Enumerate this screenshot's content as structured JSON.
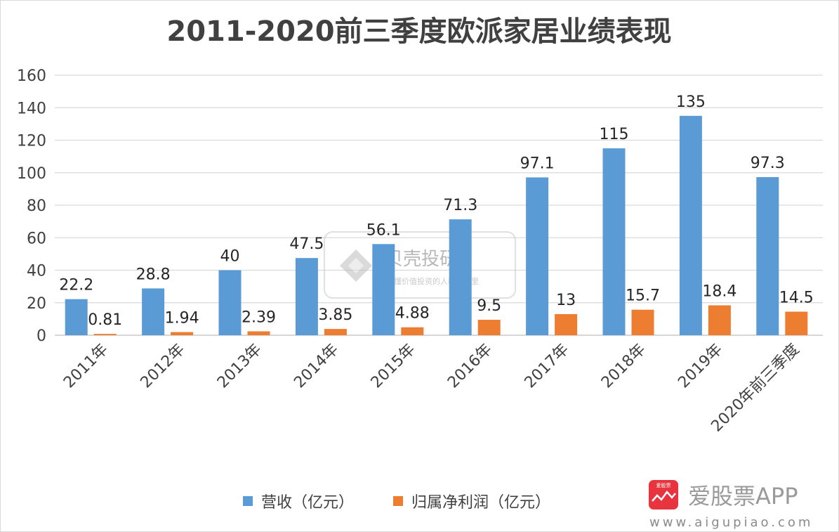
{
  "chart_data": {
    "type": "bar",
    "title": "2011-2020前三季度欧派家居业绩表现",
    "categories": [
      "2011年",
      "2012年",
      "2013年",
      "2014年",
      "2015年",
      "2016年",
      "2017年",
      "2018年",
      "2019年",
      "2020年前三季度"
    ],
    "series": [
      {
        "name": "营收（亿元）",
        "color": "#5b9bd5",
        "values": [
          22.2,
          28.8,
          40,
          47.5,
          56.1,
          71.3,
          97.1,
          115,
          135,
          97.3
        ],
        "labels": [
          "22.2",
          "28.8",
          "40",
          "47.5",
          "56.1",
          "71.3",
          "97.1",
          "115",
          "135",
          "97.3"
        ]
      },
      {
        "name": "归属净利润（亿元）",
        "color": "#ed7d31",
        "values": [
          0.81,
          1.94,
          2.39,
          3.85,
          4.88,
          9.5,
          13,
          15.7,
          18.4,
          14.5
        ],
        "labels": [
          "0.81",
          "1.94",
          "2.39",
          "3.85",
          "4.88",
          "9.5",
          "13",
          "15.7",
          "18.4",
          "14.5"
        ]
      }
    ],
    "ylim": [
      0,
      160
    ],
    "yticks": [
      0,
      20,
      40,
      60,
      80,
      100,
      120,
      140,
      160
    ],
    "grid": true,
    "legend_position": "bottom"
  },
  "watermarks": {
    "center_brand": "贝壳投研",
    "center_slogan": "更懂价值投资的人都在这里",
    "app_brand": "爱股票APP",
    "app_icon_text": "爱股票",
    "app_url": "www.aigupiao.com"
  }
}
